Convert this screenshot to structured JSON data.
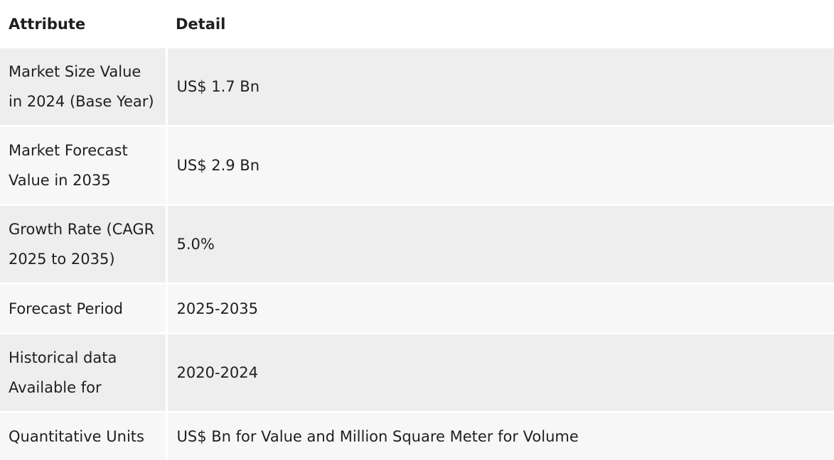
{
  "table": {
    "headers": [
      "Attribute",
      "Detail"
    ],
    "rows": [
      {
        "attribute": "Market Size Value in 2024 (Base Year)",
        "detail": "US$ 1.7 Bn"
      },
      {
        "attribute": "Market Forecast Value in 2035",
        "detail": "US$ 2.9 Bn"
      },
      {
        "attribute": "Growth Rate (CAGR 2025 to 2035)",
        "detail": "5.0%"
      },
      {
        "attribute": "Forecast Period",
        "detail": "2025-2035"
      },
      {
        "attribute": "Historical data Available for",
        "detail": "2020-2024"
      },
      {
        "attribute": "Quantitative Units",
        "detail": "US$ Bn for Value and Million Square Meter for Volume"
      }
    ]
  }
}
